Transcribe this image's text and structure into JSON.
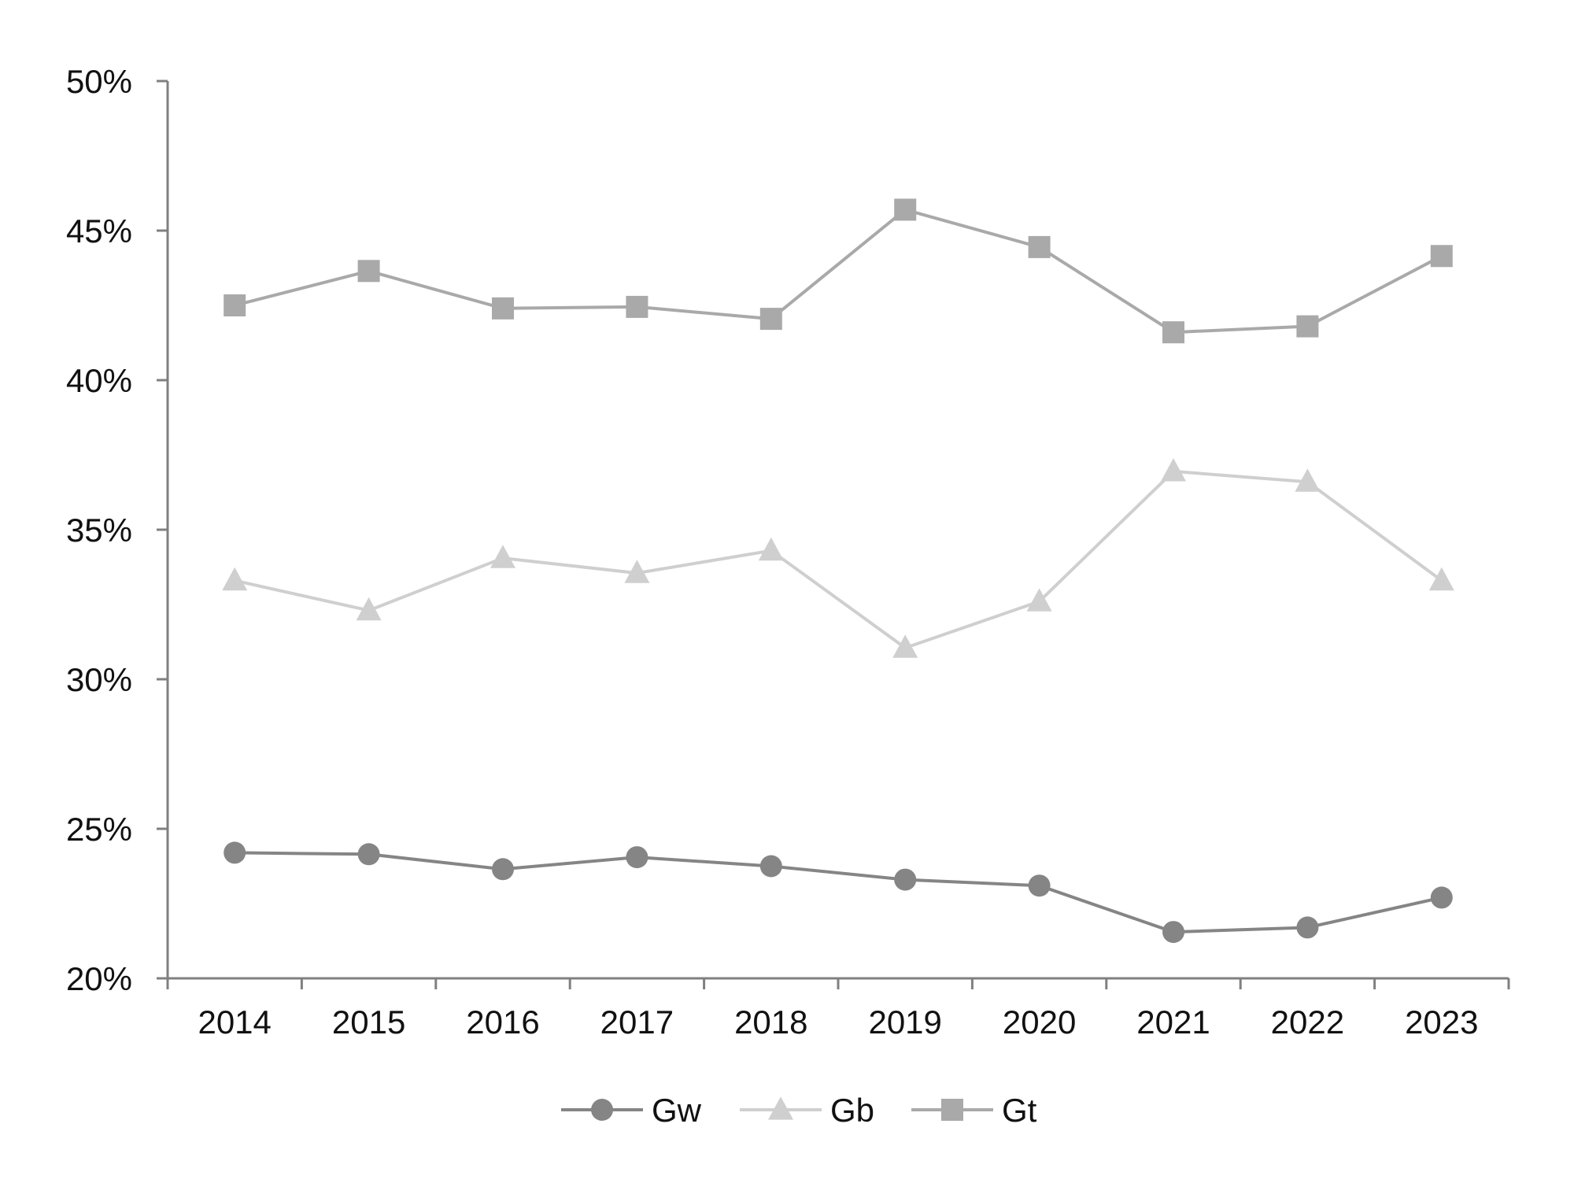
{
  "chart_data": {
    "type": "line",
    "title": "",
    "xlabel": "",
    "ylabel": "",
    "categories": [
      "2014",
      "2015",
      "2016",
      "2017",
      "2018",
      "2019",
      "2020",
      "2021",
      "2022",
      "2023"
    ],
    "ylim": [
      20,
      50
    ],
    "yticks": [
      20,
      25,
      30,
      35,
      40,
      45,
      50
    ],
    "ytick_labels": [
      "20%",
      "25%",
      "30%",
      "35%",
      "40%",
      "45%",
      "50%"
    ],
    "grid": false,
    "legend_position": "bottom",
    "series": [
      {
        "name": "Gw",
        "marker": "circle",
        "color": "#858585",
        "values": [
          24.2,
          24.15,
          23.65,
          24.05,
          23.75,
          23.3,
          23.1,
          21.55,
          21.7,
          22.7
        ]
      },
      {
        "name": "Gb",
        "marker": "triangle",
        "color": "#cfcfcf",
        "values": [
          33.3,
          32.3,
          34.05,
          33.55,
          34.3,
          31.05,
          32.6,
          36.95,
          36.6,
          33.3
        ]
      },
      {
        "name": "Gt",
        "marker": "square",
        "color": "#a9a9a9",
        "values": [
          42.5,
          43.65,
          42.4,
          42.45,
          42.05,
          45.7,
          44.45,
          41.6,
          41.8,
          44.15
        ]
      }
    ],
    "axis_color": "#808080"
  }
}
